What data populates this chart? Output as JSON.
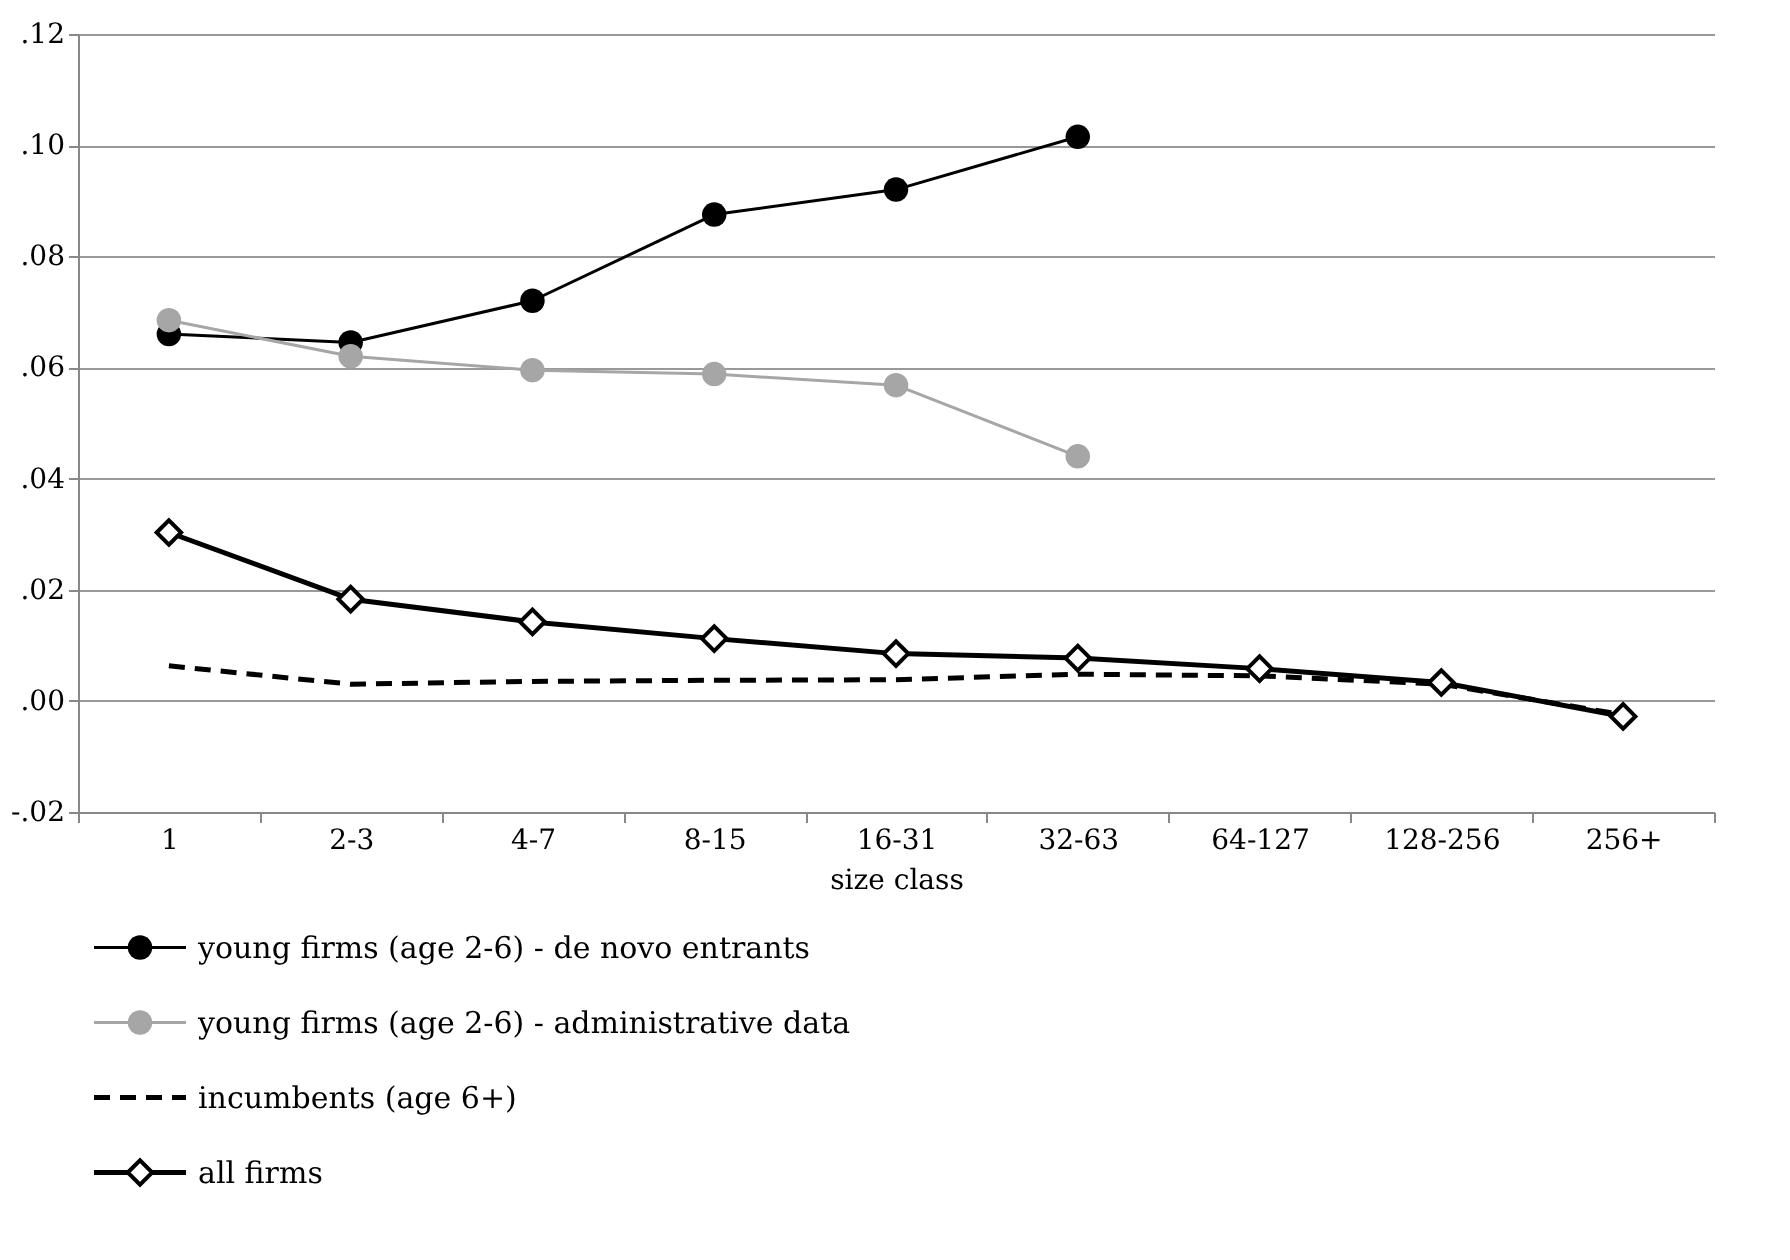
{
  "chart_data": {
    "type": "line",
    "xlabel": "size class",
    "categories": [
      "1",
      "2-3",
      "4-7",
      "8-15",
      "16-31",
      "32-63",
      "64-127",
      "128-256",
      "256+"
    ],
    "series": [
      {
        "name": "young firms (age 2-6) - de novo entrants",
        "color": "#000000",
        "marker": "circle",
        "line_style": "solid",
        "values": [
          0.066,
          0.0645,
          0.072,
          0.0875,
          0.092,
          0.1015,
          null,
          null,
          null
        ]
      },
      {
        "name": "young firms (age 2-6) - administrative data",
        "color": "#a6a6a6",
        "marker": "circle",
        "line_style": "solid",
        "values": [
          0.0685,
          0.062,
          0.0595,
          0.0588,
          0.0568,
          0.044,
          null,
          null,
          null
        ]
      },
      {
        "name": "incumbents (age 6+)",
        "color": "#000000",
        "marker": "none",
        "line_style": "dashed",
        "values": [
          0.0063,
          0.003,
          0.0035,
          0.0037,
          0.0038,
          0.0048,
          0.0045,
          0.003,
          -0.0025
        ]
      },
      {
        "name": "all firms",
        "color": "#000000",
        "marker": "diamond",
        "line_style": "solid",
        "values": [
          0.0303,
          0.0183,
          0.0142,
          0.0112,
          0.0085,
          0.0077,
          0.0058,
          0.0033,
          -0.0028
        ]
      }
    ],
    "ylim": [
      -0.02,
      0.12
    ],
    "yticks": [
      {
        "value": -0.02,
        "label": "-.02"
      },
      {
        "value": 0,
        "label": ".00"
      },
      {
        "value": 0.02,
        "label": ".02"
      },
      {
        "value": 0.04,
        "label": ".04"
      },
      {
        "value": 0.06,
        "label": ".06"
      },
      {
        "value": 0.08,
        "label": ".08"
      },
      {
        "value": 0.1,
        "label": ".10"
      },
      {
        "value": 0.12,
        "label": ".12"
      }
    ],
    "grid": "y",
    "legend": "bottom"
  }
}
